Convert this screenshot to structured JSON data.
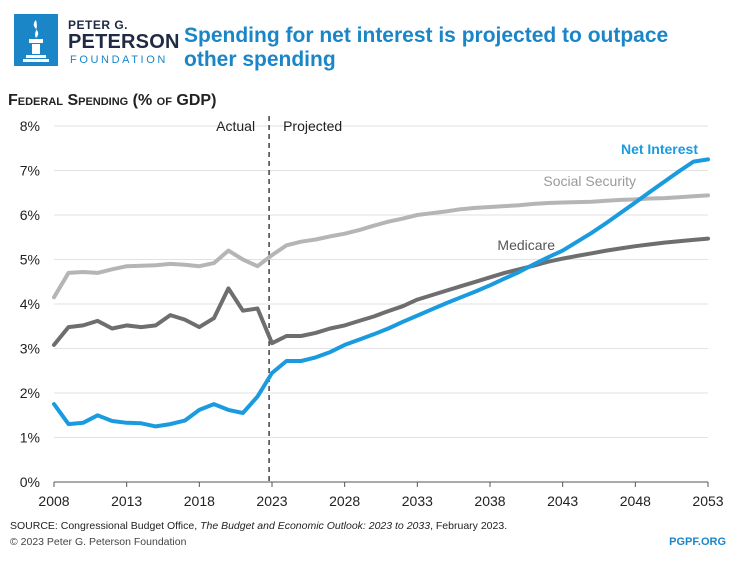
{
  "logo": {
    "line1": "PETER G.",
    "line2": "PETERSON",
    "line3": "FOUNDATION"
  },
  "title": "Spending for net interest is projected to outpace other spending",
  "chart_title": "Federal Spending (% of GDP)",
  "source_prefix": "SOURCE: Congressional Budget Office, ",
  "source_title": "The Budget and Economic Outlook: 2023 to 2033",
  "source_suffix": ", February 2023.",
  "copyright": "© 2023 Peter G. Peterson Foundation",
  "site": "PGPF.ORG",
  "colors": {
    "net_interest": "#1a9be0",
    "social_security": "#b5b5b5",
    "medicare": "#6e6e6e",
    "title": "#1a86c8"
  },
  "chart_data": {
    "type": "line",
    "title": "Federal Spending (% of GDP)",
    "xlabel": "",
    "ylabel": "",
    "xlim": [
      2008,
      2053
    ],
    "ylim": [
      0,
      8
    ],
    "x_ticks": [
      2008,
      2013,
      2018,
      2023,
      2028,
      2033,
      2038,
      2043,
      2048,
      2053
    ],
    "y_ticks": [
      0,
      1,
      2,
      3,
      4,
      5,
      6,
      7,
      8
    ],
    "y_tick_labels": [
      "0%",
      "1%",
      "2%",
      "3%",
      "4%",
      "5%",
      "6%",
      "7%",
      "8%"
    ],
    "divider_year": 2022.8,
    "actual_label": "Actual",
    "projected_label": "Projected",
    "series": [
      {
        "name": "Social Security",
        "x": [
          2008,
          2009,
          2010,
          2011,
          2012,
          2013,
          2014,
          2015,
          2016,
          2017,
          2018,
          2019,
          2020,
          2021,
          2022,
          2023,
          2024,
          2025,
          2026,
          2027,
          2028,
          2029,
          2030,
          2031,
          2032,
          2033,
          2034,
          2035,
          2036,
          2037,
          2038,
          2039,
          2040,
          2041,
          2042,
          2043,
          2044,
          2045,
          2046,
          2047,
          2048,
          2049,
          2050,
          2051,
          2052,
          2053
        ],
        "values": [
          4.15,
          4.7,
          4.72,
          4.7,
          4.78,
          4.85,
          4.86,
          4.87,
          4.9,
          4.88,
          4.85,
          4.92,
          5.2,
          5.0,
          4.85,
          5.1,
          5.32,
          5.4,
          5.45,
          5.52,
          5.58,
          5.66,
          5.76,
          5.85,
          5.92,
          6.0,
          6.04,
          6.08,
          6.13,
          6.16,
          6.18,
          6.2,
          6.22,
          6.25,
          6.27,
          6.28,
          6.29,
          6.3,
          6.32,
          6.34,
          6.35,
          6.37,
          6.38,
          6.4,
          6.42,
          6.44
        ]
      },
      {
        "name": "Medicare",
        "x": [
          2008,
          2009,
          2010,
          2011,
          2012,
          2013,
          2014,
          2015,
          2016,
          2017,
          2018,
          2019,
          2020,
          2021,
          2022,
          2023,
          2024,
          2025,
          2026,
          2027,
          2028,
          2029,
          2030,
          2031,
          2032,
          2033,
          2034,
          2035,
          2036,
          2037,
          2038,
          2039,
          2040,
          2041,
          2042,
          2043,
          2044,
          2045,
          2046,
          2047,
          2048,
          2049,
          2050,
          2051,
          2052,
          2053
        ],
        "values": [
          3.08,
          3.48,
          3.52,
          3.62,
          3.45,
          3.52,
          3.48,
          3.52,
          3.75,
          3.65,
          3.48,
          3.68,
          4.35,
          3.85,
          3.9,
          3.12,
          3.28,
          3.28,
          3.35,
          3.45,
          3.52,
          3.62,
          3.72,
          3.84,
          3.95,
          4.1,
          4.2,
          4.3,
          4.4,
          4.5,
          4.6,
          4.7,
          4.78,
          4.86,
          4.95,
          5.02,
          5.08,
          5.14,
          5.2,
          5.25,
          5.3,
          5.34,
          5.38,
          5.41,
          5.44,
          5.47
        ]
      },
      {
        "name": "Net Interest",
        "x": [
          2008,
          2009,
          2010,
          2011,
          2012,
          2013,
          2014,
          2015,
          2016,
          2017,
          2018,
          2019,
          2020,
          2021,
          2022,
          2023,
          2024,
          2025,
          2026,
          2027,
          2028,
          2029,
          2030,
          2031,
          2032,
          2033,
          2034,
          2035,
          2036,
          2037,
          2038,
          2039,
          2040,
          2041,
          2042,
          2043,
          2044,
          2045,
          2046,
          2047,
          2048,
          2049,
          2050,
          2051,
          2052,
          2053
        ],
        "values": [
          1.75,
          1.3,
          1.33,
          1.5,
          1.37,
          1.33,
          1.32,
          1.25,
          1.3,
          1.38,
          1.62,
          1.75,
          1.62,
          1.55,
          1.92,
          2.45,
          2.72,
          2.72,
          2.8,
          2.92,
          3.08,
          3.2,
          3.32,
          3.45,
          3.6,
          3.74,
          3.88,
          4.02,
          4.15,
          4.28,
          4.42,
          4.57,
          4.72,
          4.89,
          5.05,
          5.2,
          5.4,
          5.6,
          5.82,
          6.05,
          6.28,
          6.52,
          6.75,
          6.98,
          7.2,
          7.25
        ]
      }
    ]
  }
}
